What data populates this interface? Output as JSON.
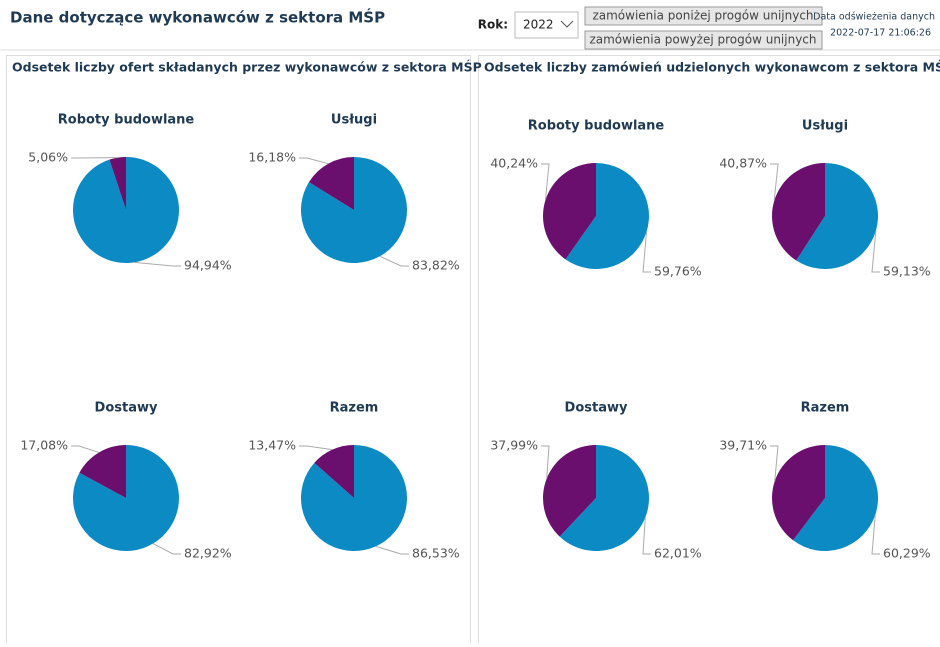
{
  "header": {
    "title": "Dane dotyczące wykonawców z sektora MŚP",
    "year_label": "Rok:",
    "year": "2022",
    "buttons": [
      "zamówienia poniżej progów unijnych",
      "zamówienia powyżej progów unijnych"
    ],
    "refresh_label": "Data odświeżenia danych",
    "refresh_date": "2022-07-17 21:06:26"
  },
  "panels": [
    {
      "title": "Odsetek liczby ofert składanych przez wykonawców z sektora MŚP"
    },
    {
      "title": "Odsetek liczby zamówień udzielonych wykonawcom z sektora MŚP"
    }
  ],
  "chart_data": [
    {
      "type": "pie",
      "title": "Roboty budowlane",
      "values": [
        94.94,
        5.06
      ],
      "value_labels": [
        "94,94%",
        "5,06%"
      ],
      "colors": [
        "#0b8ac4",
        "#6b0f6f"
      ]
    },
    {
      "type": "pie",
      "title": "Usługi",
      "values": [
        83.82,
        16.18
      ],
      "value_labels": [
        "83,82%",
        "16,18%"
      ],
      "colors": [
        "#0b8ac4",
        "#6b0f6f"
      ]
    },
    {
      "type": "pie",
      "title": "Dostawy",
      "values": [
        82.92,
        17.08
      ],
      "value_labels": [
        "82,92%",
        "17,08%"
      ],
      "colors": [
        "#0b8ac4",
        "#6b0f6f"
      ]
    },
    {
      "type": "pie",
      "title": "Razem",
      "values": [
        86.53,
        13.47
      ],
      "value_labels": [
        "86,53%",
        "13,47%"
      ],
      "colors": [
        "#0b8ac4",
        "#6b0f6f"
      ]
    },
    {
      "type": "pie",
      "title": "Roboty budowlane",
      "values": [
        59.76,
        40.24
      ],
      "value_labels": [
        "59,76%",
        "40,24%"
      ],
      "colors": [
        "#0b8ac4",
        "#6b0f6f"
      ]
    },
    {
      "type": "pie",
      "title": "Usługi",
      "values": [
        59.13,
        40.87
      ],
      "value_labels": [
        "59,13%",
        "40,87%"
      ],
      "colors": [
        "#0b8ac4",
        "#6b0f6f"
      ]
    },
    {
      "type": "pie",
      "title": "Dostawy",
      "values": [
        62.01,
        37.99
      ],
      "value_labels": [
        "62,01%",
        "37,99%"
      ],
      "colors": [
        "#0b8ac4",
        "#6b0f6f"
      ]
    },
    {
      "type": "pie",
      "title": "Razem",
      "values": [
        60.29,
        39.71
      ],
      "value_labels": [
        "60,29%",
        "39,71%"
      ],
      "colors": [
        "#0b8ac4",
        "#6b0f6f"
      ]
    }
  ]
}
